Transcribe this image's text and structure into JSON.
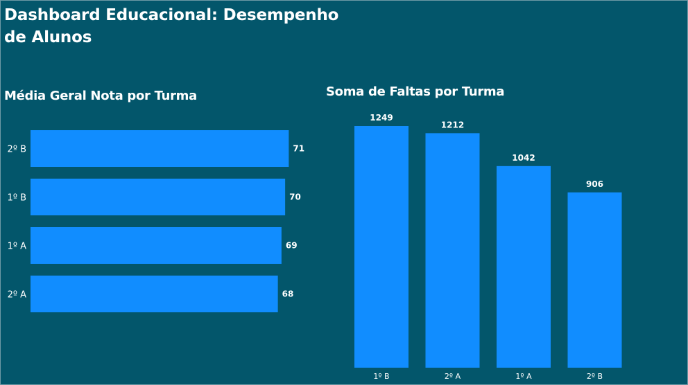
{
  "page": {
    "title": "Dashboard Educacional: Desempenho de Alunos"
  },
  "colors": {
    "background": "#03566B",
    "bar": "#118DFF",
    "text": "#FFFFFF"
  },
  "chart_data": [
    {
      "type": "bar",
      "orientation": "horizontal",
      "title": "Média Geral Nota por Turma",
      "categories": [
        "2º B",
        "1º B",
        "1º A",
        "2º A"
      ],
      "values": [
        71,
        70,
        69,
        68
      ],
      "data_labels": [
        "71",
        "70",
        "69",
        "68"
      ],
      "xlim": [
        0,
        71.5
      ],
      "grid": false
    },
    {
      "type": "bar",
      "orientation": "vertical",
      "title": "Soma de Faltas por Turma",
      "categories": [
        "1º B",
        "2º A",
        "1º A",
        "2º B"
      ],
      "values": [
        1249,
        1212,
        1042,
        906
      ],
      "data_labels": [
        "1249",
        "1212",
        "1042",
        "906"
      ],
      "ylim": [
        0,
        1249
      ],
      "grid": false
    }
  ]
}
